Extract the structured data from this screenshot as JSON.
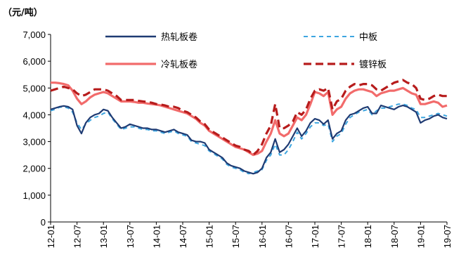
{
  "chart_data": {
    "type": "line",
    "unit_label": "（元/吨）",
    "ylim": [
      0,
      7000
    ],
    "yticks": [
      "0",
      "1,000",
      "2,000",
      "3,000",
      "4,000",
      "5,000",
      "6,000",
      "7,000"
    ],
    "ytick_values": [
      0,
      1000,
      2000,
      3000,
      4000,
      5000,
      6000,
      7000
    ],
    "xlim": [
      0,
      90
    ],
    "xticks": [
      "12-01",
      "12-07",
      "13-01",
      "13-07",
      "14-01",
      "14-07",
      "15-01",
      "15-07",
      "16-01",
      "16-07",
      "17-01",
      "17-07",
      "18-01",
      "18-07",
      "19-01",
      "19-07"
    ],
    "xtick_values": [
      0,
      6,
      12,
      18,
      24,
      30,
      36,
      42,
      48,
      54,
      60,
      66,
      72,
      78,
      84,
      90
    ],
    "grid": false,
    "legend": "top",
    "series": [
      {
        "name": "热轧板卷",
        "color": "#1f3b73",
        "dash": "solid",
        "x": [
          0,
          1,
          2,
          3,
          4,
          5,
          6,
          7,
          8,
          9,
          10,
          11,
          12,
          13,
          14,
          15,
          16,
          17,
          18,
          19,
          20,
          21,
          22,
          23,
          24,
          25,
          26,
          27,
          28,
          29,
          30,
          31,
          32,
          33,
          34,
          35,
          36,
          37,
          38,
          39,
          40,
          41,
          42,
          43,
          44,
          45,
          46,
          47,
          48,
          49,
          50,
          51,
          52,
          53,
          54,
          55,
          56,
          57,
          58,
          59,
          60,
          61,
          62,
          63,
          64,
          65,
          66,
          67,
          68,
          69,
          70,
          71,
          72,
          73,
          74,
          75,
          76,
          77,
          78,
          79,
          80,
          81,
          82,
          83,
          84,
          85,
          86,
          87,
          88,
          89,
          90
        ],
        "y": [
          4200,
          4250,
          4300,
          4330,
          4300,
          4200,
          3600,
          3300,
          3700,
          3900,
          4000,
          4050,
          4200,
          4150,
          3900,
          3700,
          3500,
          3550,
          3650,
          3600,
          3550,
          3500,
          3500,
          3450,
          3450,
          3400,
          3350,
          3400,
          3450,
          3350,
          3300,
          3250,
          3050,
          3000,
          3000,
          2950,
          2700,
          2600,
          2500,
          2400,
          2200,
          2100,
          2050,
          2000,
          1900,
          1850,
          1800,
          1850,
          2000,
          2400,
          2600,
          3100,
          2600,
          2700,
          2900,
          3200,
          3500,
          3200,
          3400,
          3700,
          3850,
          3800,
          3650,
          3800,
          3100,
          3300,
          3400,
          3800,
          4000,
          4050,
          4150,
          4250,
          4300,
          4050,
          4050,
          4350,
          4300,
          4250,
          4200,
          4300,
          4350,
          4300,
          4200,
          4100,
          3700,
          3800,
          3850,
          3950,
          4000,
          3900,
          3850
        ]
      },
      {
        "name": "中板",
        "color": "#3ea6e0",
        "dash": "6,5",
        "x": [
          0,
          1,
          2,
          3,
          4,
          5,
          6,
          7,
          8,
          9,
          10,
          11,
          12,
          13,
          14,
          15,
          16,
          17,
          18,
          19,
          20,
          21,
          22,
          23,
          24,
          25,
          26,
          27,
          28,
          29,
          30,
          31,
          32,
          33,
          34,
          35,
          36,
          37,
          38,
          39,
          40,
          41,
          42,
          43,
          44,
          45,
          46,
          47,
          48,
          49,
          50,
          51,
          52,
          53,
          54,
          55,
          56,
          57,
          58,
          59,
          60,
          61,
          62,
          63,
          64,
          65,
          66,
          67,
          68,
          69,
          70,
          71,
          72,
          73,
          74,
          75,
          76,
          77,
          78,
          79,
          80,
          81,
          82,
          83,
          84,
          85,
          86,
          87,
          88,
          89,
          90
        ],
        "y": [
          4150,
          4200,
          4280,
          4300,
          4250,
          4100,
          3700,
          3450,
          3650,
          3800,
          3900,
          3950,
          4050,
          4100,
          3850,
          3650,
          3450,
          3500,
          3550,
          3550,
          3500,
          3450,
          3450,
          3400,
          3400,
          3350,
          3300,
          3350,
          3400,
          3300,
          3250,
          3200,
          3000,
          2950,
          2900,
          2850,
          2650,
          2550,
          2450,
          2350,
          2150,
          2050,
          2000,
          1950,
          1850,
          1800,
          1850,
          1900,
          1950,
          2300,
          2500,
          2900,
          2500,
          2500,
          2700,
          3000,
          3350,
          3100,
          3300,
          3550,
          3700,
          3700,
          3600,
          3650,
          3000,
          3200,
          3300,
          3650,
          3900,
          4000,
          4100,
          4150,
          4200,
          4000,
          4150,
          4250,
          4250,
          4300,
          4350,
          4400,
          4400,
          4350,
          4250,
          4200,
          3900,
          3900,
          3950,
          4000,
          4050,
          4000,
          3950
        ]
      },
      {
        "name": "冷轧板卷",
        "color": "#f26b6b",
        "dash": "solid",
        "x": [
          0,
          1,
          2,
          3,
          4,
          5,
          6,
          7,
          8,
          9,
          10,
          11,
          12,
          13,
          14,
          15,
          16,
          17,
          18,
          19,
          20,
          21,
          22,
          23,
          24,
          25,
          26,
          27,
          28,
          29,
          30,
          31,
          32,
          33,
          34,
          35,
          36,
          37,
          38,
          39,
          40,
          41,
          42,
          43,
          44,
          45,
          46,
          47,
          48,
          49,
          50,
          51,
          52,
          53,
          54,
          55,
          56,
          57,
          58,
          59,
          60,
          61,
          62,
          63,
          64,
          65,
          66,
          67,
          68,
          69,
          70,
          71,
          72,
          73,
          74,
          75,
          76,
          77,
          78,
          79,
          80,
          81,
          82,
          83,
          84,
          85,
          86,
          87,
          88,
          89,
          90
        ],
        "y": [
          5200,
          5200,
          5180,
          5150,
          5100,
          4900,
          4600,
          4400,
          4500,
          4650,
          4750,
          4800,
          4850,
          4800,
          4700,
          4600,
          4500,
          4500,
          4500,
          4480,
          4450,
          4450,
          4420,
          4400,
          4380,
          4350,
          4300,
          4250,
          4200,
          4150,
          4100,
          4050,
          3950,
          3850,
          3700,
          3600,
          3400,
          3300,
          3200,
          3100,
          3000,
          2900,
          2800,
          2750,
          2700,
          2600,
          2500,
          2550,
          2650,
          3000,
          3300,
          3800,
          3300,
          3200,
          3300,
          3600,
          3900,
          3800,
          4000,
          4400,
          4850,
          4800,
          4700,
          4850,
          4000,
          4200,
          4300,
          4600,
          4800,
          4900,
          4950,
          4950,
          4900,
          4850,
          4700,
          4800,
          4850,
          4900,
          4900,
          4950,
          5000,
          4900,
          4800,
          4750,
          4400,
          4400,
          4450,
          4500,
          4450,
          4300,
          4350
        ]
      },
      {
        "name": "镀锌板",
        "color": "#b71c1c",
        "dash": "11,6",
        "x": [
          0,
          1,
          2,
          3,
          4,
          5,
          6,
          7,
          8,
          9,
          10,
          11,
          12,
          13,
          14,
          15,
          16,
          17,
          18,
          19,
          20,
          21,
          22,
          23,
          24,
          25,
          26,
          27,
          28,
          29,
          30,
          31,
          32,
          33,
          34,
          35,
          36,
          37,
          38,
          39,
          40,
          41,
          42,
          43,
          44,
          45,
          46,
          47,
          48,
          49,
          50,
          51,
          52,
          53,
          54,
          55,
          56,
          57,
          58,
          59,
          60,
          61,
          62,
          63,
          64,
          65,
          66,
          67,
          68,
          69,
          70,
          71,
          72,
          73,
          74,
          75,
          76,
          77,
          78,
          79,
          80,
          81,
          82,
          83,
          84,
          85,
          86,
          87,
          88,
          89,
          90
        ],
        "y": [
          4900,
          4950,
          5000,
          5050,
          5000,
          4950,
          4800,
          4700,
          4750,
          4850,
          4950,
          4950,
          4950,
          4900,
          4800,
          4700,
          4550,
          4550,
          4550,
          4550,
          4520,
          4500,
          4480,
          4450,
          4400,
          4380,
          4350,
          4300,
          4300,
          4250,
          4150,
          4100,
          4000,
          3900,
          3750,
          3650,
          3450,
          3350,
          3250,
          3150,
          3050,
          2950,
          2850,
          2800,
          2700,
          2650,
          2500,
          2650,
          2900,
          3300,
          3600,
          4400,
          3500,
          3500,
          3600,
          3750,
          4100,
          4000,
          4200,
          4600,
          4900,
          4950,
          4900,
          5000,
          4200,
          4500,
          4600,
          4900,
          5050,
          5150,
          5100,
          5150,
          5150,
          5100,
          4950,
          4900,
          5000,
          5100,
          5200,
          5250,
          5300,
          5200,
          5150,
          5000,
          4600,
          4550,
          4600,
          4700,
          4750,
          4700,
          4700
        ]
      }
    ]
  }
}
